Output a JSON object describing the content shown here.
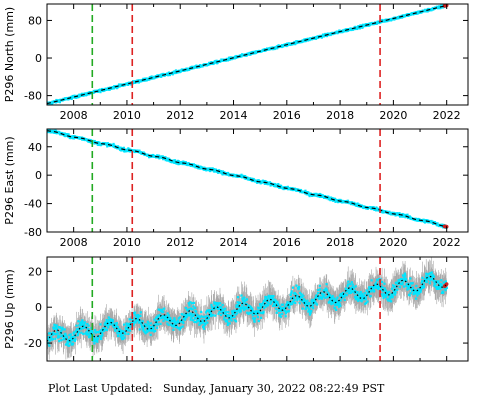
{
  "colors": {
    "data_points": "#00e5ff",
    "error_bars": "#a8a8a8",
    "model_line": "#000000",
    "green_event": "#22aa22",
    "red_event": "#dd2222",
    "recent_points": "#cc2222"
  },
  "chart_data": [
    {
      "type": "scatter",
      "ylabel": "P296 North (mm)",
      "xlim": [
        2007.0,
        2022.8
      ],
      "ylim": [
        -100,
        115
      ],
      "x_ticks": [
        2008,
        2010,
        2012,
        2014,
        2016,
        2018,
        2020,
        2022
      ],
      "y_ticks": [
        -80,
        0,
        80
      ],
      "trend": {
        "x": [
          2007.0,
          2022.0
        ],
        "y": [
          -97,
          112
        ]
      },
      "seasonal_amplitude": 0,
      "scatter_noise": 2.5,
      "error_bar": 1.5,
      "event_lines": [
        {
          "x": 2008.7,
          "color": "green"
        },
        {
          "x": 2010.2,
          "color": "red"
        },
        {
          "x": 2019.5,
          "color": "red"
        }
      ],
      "x_tick_labels_shown": true
    },
    {
      "type": "scatter",
      "ylabel": "P296 East (mm)",
      "xlim": [
        2007.0,
        2022.8
      ],
      "ylim": [
        -80,
        65
      ],
      "x_ticks": [
        2008,
        2010,
        2012,
        2014,
        2016,
        2018,
        2020,
        2022
      ],
      "y_ticks": [
        -80,
        -40,
        0,
        40
      ],
      "trend": {
        "x": [
          2007.0,
          2022.0
        ],
        "y": [
          63,
          -72
        ]
      },
      "seasonal_amplitude": 0.8,
      "scatter_noise": 2.0,
      "error_bar": 1.5,
      "event_lines": [
        {
          "x": 2008.7,
          "color": "green"
        },
        {
          "x": 2010.2,
          "color": "red"
        },
        {
          "x": 2019.5,
          "color": "red"
        }
      ],
      "x_tick_labels_shown": true
    },
    {
      "type": "scatter",
      "ylabel": "P296 Up (mm)",
      "xlim": [
        2007.0,
        2022.8
      ],
      "ylim": [
        -30,
        28
      ],
      "x_ticks": [
        2008,
        2010,
        2012,
        2014,
        2016,
        2018,
        2020,
        2022
      ],
      "y_ticks": [
        -20,
        0,
        20
      ],
      "trend": {
        "x": [
          2007.0,
          2022.0
        ],
        "y": [
          -17,
          15
        ]
      },
      "seasonal_amplitude": 3.5,
      "scatter_noise": 4.0,
      "error_bar": 6,
      "event_lines": [
        {
          "x": 2008.7,
          "color": "green"
        },
        {
          "x": 2010.2,
          "color": "red"
        },
        {
          "x": 2019.5,
          "color": "red"
        }
      ],
      "x_tick_labels_shown": false
    }
  ],
  "footer": {
    "label": "Plot Last Updated:",
    "timestamp": "Sunday, January 30, 2022 08:22:49 PST"
  }
}
